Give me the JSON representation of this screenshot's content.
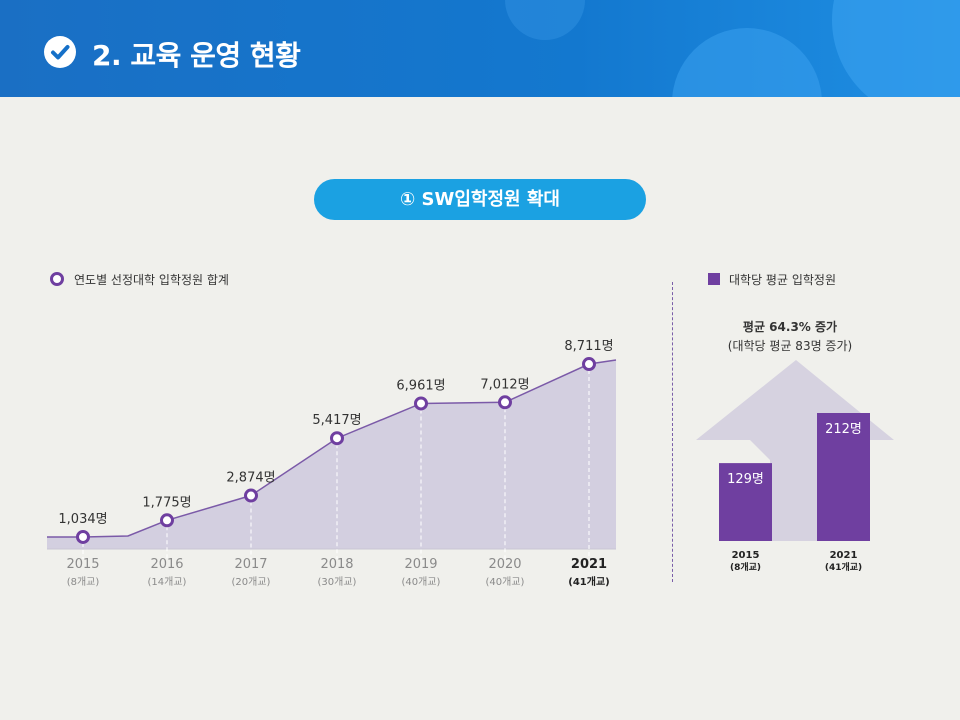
{
  "header": {
    "title": "2. 교육 운영 현황",
    "icon": "check-circle-icon"
  },
  "section_pill": "① SW입학정원 확대",
  "legend_left": "연도별 선정대학 입학정원 합계",
  "legend_right": "대학당 평균 입학정원",
  "colors": {
    "accent": "#6f3fa0",
    "area": "#d3cfe0",
    "header": "#1570c8",
    "pill": "#1ba1e2"
  },
  "chart_data": [
    {
      "type": "area",
      "series": [
        {
          "name": "연도별 선정대학 입학정원 합계",
          "values": [
            1034,
            1775,
            2874,
            5417,
            6961,
            7012,
            8711
          ]
        }
      ],
      "categories": [
        "2015",
        "2016",
        "2017",
        "2018",
        "2019",
        "2020",
        "2021"
      ],
      "sublabels": [
        "(8개교)",
        "(14개교)",
        "(20개교)",
        "(30개교)",
        "(40개교)",
        "(40개교)",
        "(41개교)"
      ],
      "value_labels": [
        "1,034명",
        "1,775명",
        "2,874명",
        "5,417명",
        "6,961명",
        "7,012명",
        "8,711명"
      ],
      "highlight": "2021"
    },
    {
      "type": "bar",
      "series": [
        {
          "name": "대학당 평균 입학정원",
          "values": [
            129,
            212
          ]
        }
      ],
      "categories": [
        "2015",
        "2021"
      ],
      "sublabels": [
        "(8개교)",
        "(41개교)"
      ],
      "value_labels": [
        "129명",
        "212명"
      ],
      "annotation": [
        "평균 64.3% 증가",
        "(대학당 평균 83명 증가)"
      ]
    }
  ]
}
